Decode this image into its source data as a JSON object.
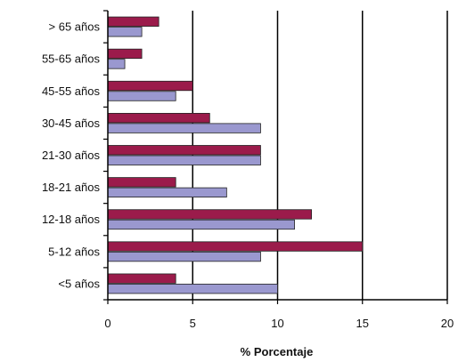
{
  "chart_data": {
    "type": "bar",
    "orientation": "horizontal",
    "categories": [
      "> 65 años",
      "55-65 años",
      "45-55 años",
      "30-45 años",
      "21-30 años",
      "18-21 años",
      "12-18 años",
      "5-12 años",
      "<5 años"
    ],
    "series": [
      {
        "color": "#9b1b4b",
        "values": [
          3,
          2,
          5,
          6,
          9,
          4,
          12,
          15,
          4
        ]
      },
      {
        "color": "#9a98cf",
        "values": [
          2,
          1,
          4,
          9,
          9,
          7,
          11,
          9,
          10
        ]
      }
    ],
    "xlabel": "% Porcentaje",
    "xlim": [
      0,
      20
    ],
    "xticks": [
      0,
      5,
      10,
      15,
      20
    ],
    "grid": "vertical"
  }
}
